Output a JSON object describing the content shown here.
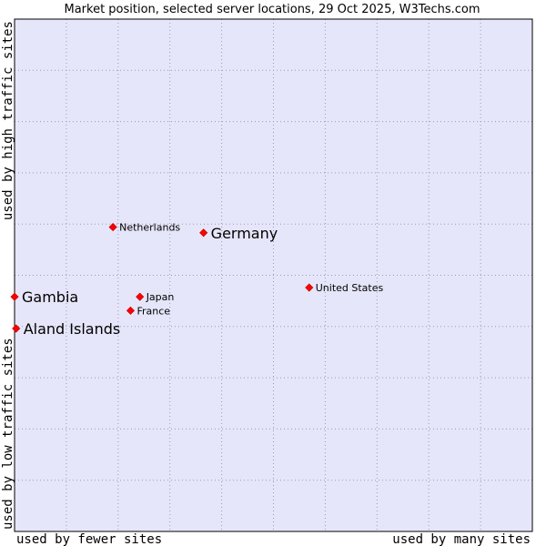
{
  "chart_data": {
    "type": "scatter",
    "title": "Market position, selected server locations, 29 Oct 2025, W3Techs.com",
    "xlabel_left": "used by fewer sites",
    "xlabel_right": "used by many sites",
    "ylabel_bottom": "used by low traffic sites",
    "ylabel_top": "used by high traffic sites",
    "xlim": [
      0,
      100
    ],
    "ylim": [
      0,
      100
    ],
    "grid": true,
    "colors": {
      "plot_bg": "#e6e6fa",
      "grid": "#9999bb",
      "marker": "#ff0000",
      "frame": "#000000"
    },
    "points": [
      {
        "name": "Netherlands",
        "x": 19.0,
        "y": 59.4,
        "emphasis": false
      },
      {
        "name": "Germany",
        "x": 36.5,
        "y": 58.3,
        "emphasis": true
      },
      {
        "name": "United States",
        "x": 56.9,
        "y": 47.6,
        "emphasis": false
      },
      {
        "name": "Gambia",
        "x": 0.0,
        "y": 45.8,
        "emphasis": true
      },
      {
        "name": "Japan",
        "x": 24.2,
        "y": 45.8,
        "emphasis": false
      },
      {
        "name": "France",
        "x": 22.4,
        "y": 43.1,
        "emphasis": false
      },
      {
        "name": "Aland Islands",
        "x": 0.3,
        "y": 39.6,
        "emphasis": true
      }
    ]
  }
}
